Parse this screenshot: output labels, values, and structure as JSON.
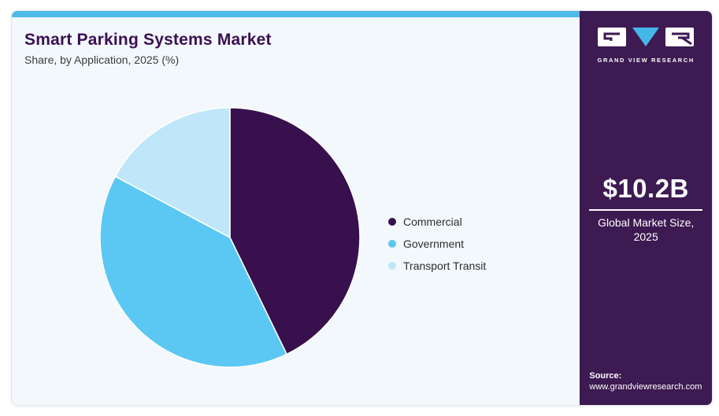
{
  "header": {
    "title": "Smart Parking Systems Market",
    "subtitle": "Share, by Application, 2025 (%)"
  },
  "chart_data": {
    "type": "pie",
    "title": "Smart Parking Systems Market Share, by Application, 2025 (%)",
    "unit": "%",
    "start_angle_deg": 0,
    "direction": "clockwise",
    "legend_position": "right",
    "slices": [
      {
        "label": "Commercial",
        "value": 42.8,
        "color": "#38104d"
      },
      {
        "label": "Government",
        "value": 40.0,
        "color": "#5bc8f3"
      },
      {
        "label": "Transport Transit",
        "value": 17.2,
        "color": "#bfe7f9"
      }
    ]
  },
  "sidebar": {
    "logo": {
      "brand": "GRAND VIEW RESEARCH"
    },
    "market_size": {
      "value": "$10.2B",
      "label_line1": "Global Market Size,",
      "label_line2": "2025"
    },
    "source": {
      "label": "Source:",
      "url": "www.grandviewresearch.com"
    }
  },
  "colors": {
    "accent_bar": "#4fb9ea",
    "sidebar_bg": "#3d1a52",
    "card_bg": "#f3f8fc",
    "title_text": "#3b1053",
    "logo_triangle": "#45b6e8",
    "pie_stroke": "#ffffff"
  }
}
